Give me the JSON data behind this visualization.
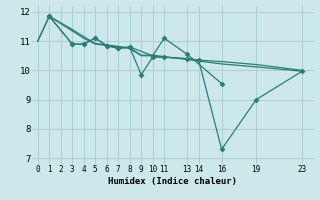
{
  "xlabel": "Humidex (Indice chaleur)",
  "bg_color": "#cce8ea",
  "grid_color": "#aacfd2",
  "line_color": "#2a7d78",
  "xlim": [
    -0.5,
    24
  ],
  "ylim": [
    6.8,
    12.2
  ],
  "yticks": [
    7,
    8,
    9,
    10,
    11,
    12
  ],
  "xticks": [
    0,
    1,
    2,
    3,
    4,
    5,
    6,
    7,
    8,
    9,
    10,
    11,
    13,
    14,
    16,
    19,
    23
  ],
  "series": [
    {
      "x": [
        0,
        1,
        3,
        4,
        5,
        6,
        7,
        8,
        9,
        10,
        11,
        13,
        14,
        16,
        19,
        23
      ],
      "y": [
        11.0,
        11.85,
        11.35,
        11.1,
        10.9,
        10.85,
        10.8,
        10.75,
        10.5,
        10.5,
        10.45,
        10.4,
        10.35,
        10.3,
        10.2,
        10.0
      ],
      "marker": false
    },
    {
      "x": [
        0,
        1,
        3,
        4,
        5,
        6,
        7,
        8,
        9,
        10,
        11,
        13,
        14,
        16,
        19,
        23
      ],
      "y": [
        11.0,
        11.85,
        11.4,
        11.15,
        10.92,
        10.87,
        10.82,
        10.77,
        10.52,
        10.52,
        10.47,
        10.37,
        10.32,
        10.22,
        10.12,
        9.97
      ],
      "marker": false
    },
    {
      "x": [
        1,
        3,
        4,
        5,
        6,
        7,
        8,
        10,
        11,
        13,
        16
      ],
      "y": [
        11.85,
        10.9,
        10.9,
        11.1,
        10.85,
        10.75,
        10.8,
        10.5,
        11.1,
        10.55,
        9.55
      ],
      "marker": true
    },
    {
      "x": [
        1,
        3,
        4,
        5,
        6,
        7,
        8,
        9,
        10,
        11,
        13,
        14,
        16,
        19,
        23
      ],
      "y": [
        11.85,
        10.9,
        10.9,
        11.1,
        10.85,
        10.75,
        10.8,
        9.85,
        10.45,
        10.45,
        10.4,
        10.35,
        7.3,
        9.0,
        9.97
      ],
      "marker": true
    }
  ]
}
